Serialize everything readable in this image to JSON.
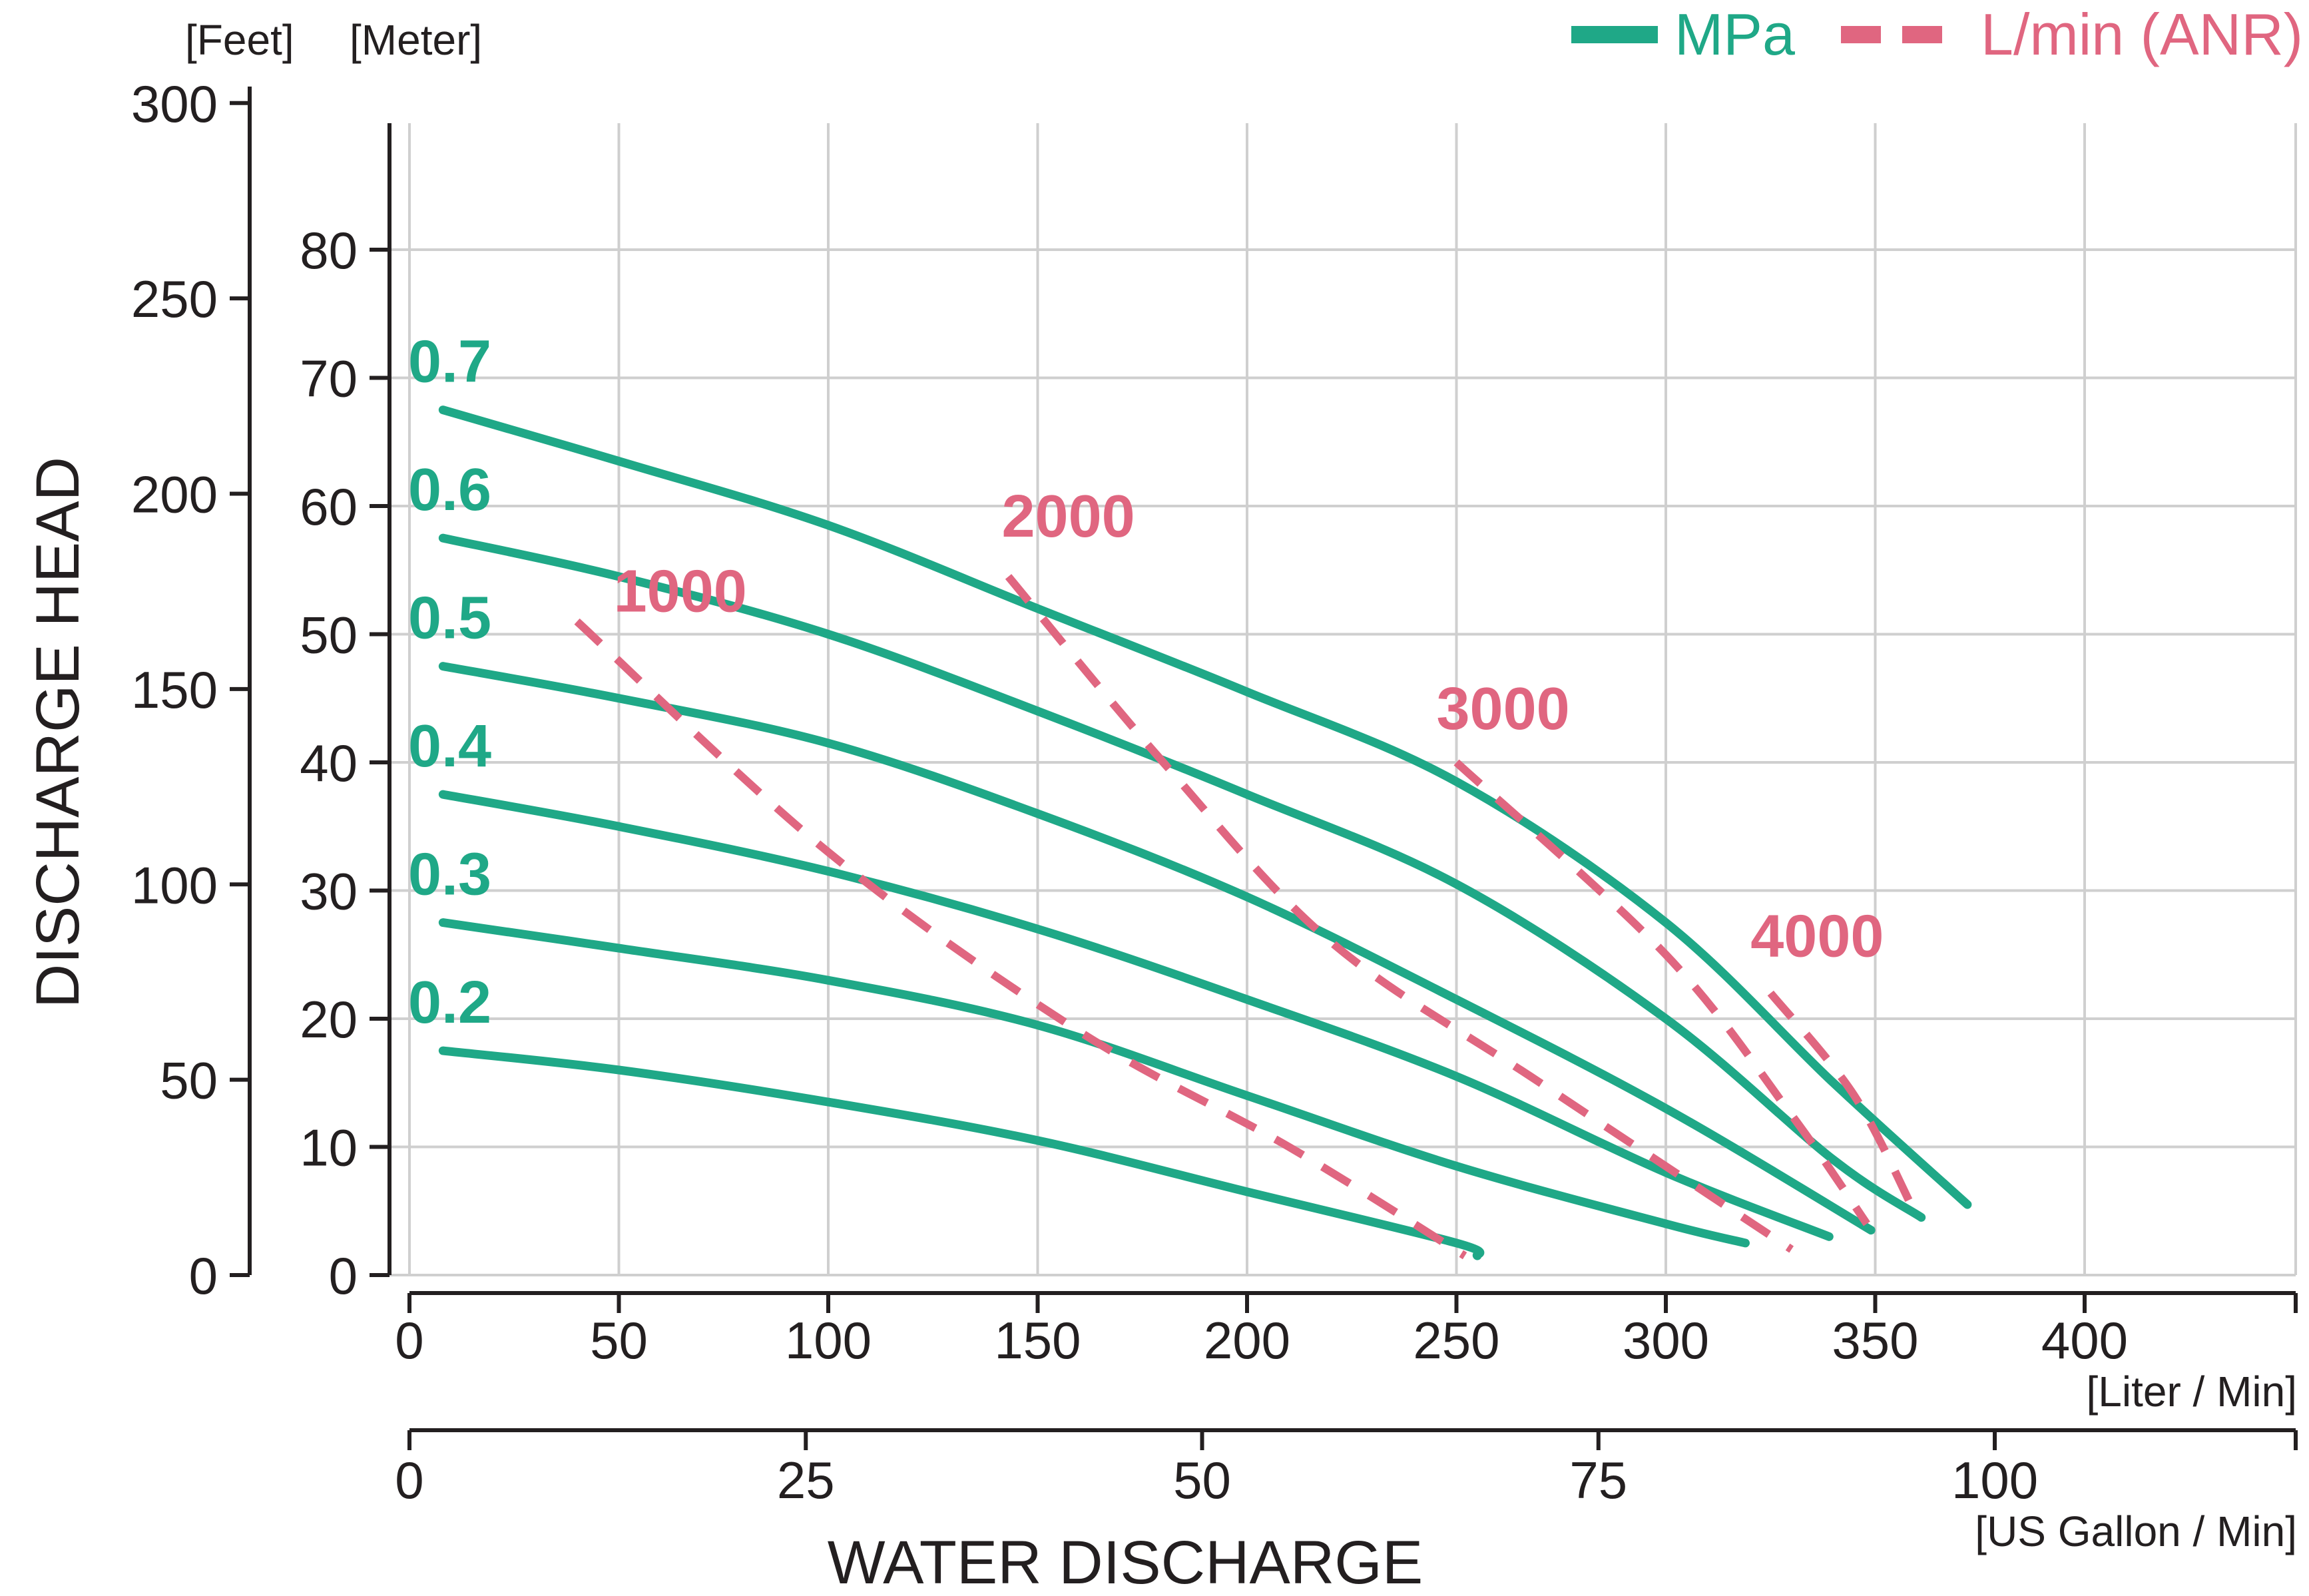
{
  "chart_data": {
    "type": "line",
    "title": "",
    "xlabel": "WATER DISCHARGE",
    "ylabel": "DISCHARGE HEAD",
    "x_unit_primary": "[Liter / Min]",
    "x_unit_secondary": "[US Gallon / Min]",
    "y_unit_feet": "[Feet]",
    "y_unit_meter": "[Meter]",
    "xlim": [
      0,
      450
    ],
    "ylim_meter": [
      0,
      90
    ],
    "x_ticks": [
      0,
      50,
      100,
      150,
      200,
      250,
      300,
      350,
      400
    ],
    "x_ticks_gallon": [
      0,
      25,
      50,
      75,
      100
    ],
    "y_ticks_meter": [
      0,
      10,
      20,
      30,
      40,
      50,
      60,
      70,
      80
    ],
    "y_ticks_feet": [
      0,
      50,
      100,
      150,
      200,
      250,
      300
    ],
    "grid": true,
    "legend_position": "top-right",
    "legend": [
      {
        "label": "MPa",
        "style": "solid",
        "color": "#1fa887"
      },
      {
        "label": "L/min (ANR)",
        "style": "dashed",
        "color": "#e06680"
      }
    ],
    "series": [
      {
        "name": "0.7",
        "group": "MPa",
        "points": [
          [
            8,
            67.5
          ],
          [
            50,
            63.5
          ],
          [
            100,
            58.5
          ],
          [
            150,
            52
          ],
          [
            200,
            45.5
          ],
          [
            250,
            38.5
          ],
          [
            300,
            27.5
          ],
          [
            340,
            15
          ],
          [
            372,
            5.5
          ]
        ]
      },
      {
        "name": "0.6",
        "group": "MPa",
        "points": [
          [
            8,
            57.5
          ],
          [
            50,
            54.5
          ],
          [
            100,
            50
          ],
          [
            150,
            44
          ],
          [
            200,
            37.5
          ],
          [
            250,
            30.5
          ],
          [
            300,
            20
          ],
          [
            340,
            9
          ],
          [
            361,
            4.5
          ]
        ]
      },
      {
        "name": "0.5",
        "group": "MPa",
        "points": [
          [
            8,
            47.5
          ],
          [
            50,
            45
          ],
          [
            100,
            41.5
          ],
          [
            150,
            36
          ],
          [
            200,
            29.5
          ],
          [
            250,
            21.5
          ],
          [
            300,
            13
          ],
          [
            349,
            3.5
          ]
        ]
      },
      {
        "name": "0.4",
        "group": "MPa",
        "points": [
          [
            8,
            37.5
          ],
          [
            50,
            35
          ],
          [
            100,
            31.5
          ],
          [
            150,
            27
          ],
          [
            200,
            21.5
          ],
          [
            250,
            15.5
          ],
          [
            300,
            8
          ],
          [
            339,
            3
          ]
        ]
      },
      {
        "name": "0.3",
        "group": "MPa",
        "points": [
          [
            8,
            27.5
          ],
          [
            50,
            25.5
          ],
          [
            100,
            23
          ],
          [
            150,
            19.5
          ],
          [
            200,
            14
          ],
          [
            250,
            8.5
          ],
          [
            300,
            4
          ],
          [
            319,
            2.5
          ]
        ]
      },
      {
        "name": "0.2",
        "group": "MPa",
        "points": [
          [
            8,
            17.5
          ],
          [
            50,
            16
          ],
          [
            100,
            13.5
          ],
          [
            150,
            10.5
          ],
          [
            200,
            6.5
          ],
          [
            250,
            2.5
          ],
          [
            255,
            1.5
          ]
        ]
      },
      {
        "name": "1000",
        "group": "L/min (ANR)",
        "points": [
          [
            40,
            51
          ],
          [
            100,
            33
          ],
          [
            160,
            19
          ],
          [
            210,
            10
          ],
          [
            252,
            1.5
          ]
        ]
      },
      {
        "name": "2000",
        "group": "L/min (ANR)",
        "points": [
          [
            143,
            54.5
          ],
          [
            180,
            40
          ],
          [
            220,
            26
          ],
          [
            270,
            15
          ],
          [
            330,
            2
          ]
        ]
      },
      {
        "name": "3000",
        "group": "L/min (ANR)",
        "points": [
          [
            250,
            40
          ],
          [
            300,
            25
          ],
          [
            330,
            12.5
          ],
          [
            348,
            4
          ]
        ]
      },
      {
        "name": "4000",
        "group": "L/min (ANR)",
        "points": [
          [
            325,
            22
          ],
          [
            345,
            14
          ],
          [
            360,
            4.5
          ]
        ]
      }
    ]
  },
  "colors": {
    "mpa": "#1fa887",
    "anr": "#e06680",
    "grid": "#cfcfcf",
    "axis": "#231f20"
  }
}
